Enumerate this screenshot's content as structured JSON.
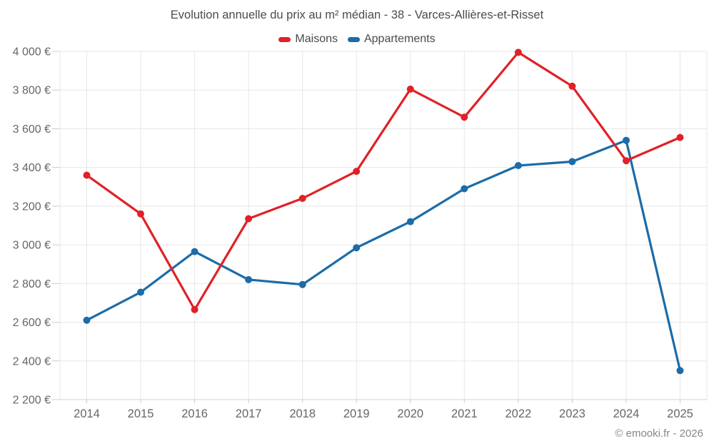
{
  "chart": {
    "credits": "© emooki.fr - 2026"
  },
  "colors": {
    "maisons": "#e02127",
    "appartements": "#1b6ca8",
    "grid": "#e7e7e7",
    "axis_line": "#ccd2d9",
    "tick": "#cccccc",
    "axis_label": "#666666",
    "title_text": "#4c4c4c",
    "legend_text": "#4a4a4a",
    "credits_text": "#868686",
    "background": "#ffffff"
  },
  "chart_data": {
    "type": "line",
    "title": "Evolution annuelle du prix au m² médian - 38 - Varces-Allières-et-Risset",
    "xlabel": "",
    "ylabel": "",
    "categories": [
      "2014",
      "2015",
      "2016",
      "2017",
      "2018",
      "2019",
      "2020",
      "2021",
      "2022",
      "2023",
      "2024",
      "2025"
    ],
    "series": [
      {
        "name": "Maisons",
        "color": "#e02127",
        "values": [
          3360,
          3160,
          2665,
          3135,
          3240,
          3380,
          3805,
          3660,
          3995,
          3820,
          3435,
          3555
        ]
      },
      {
        "name": "Appartements",
        "color": "#1b6ca8",
        "values": [
          2610,
          2755,
          2965,
          2820,
          2795,
          2985,
          3120,
          3290,
          3410,
          3430,
          3540,
          2350
        ]
      }
    ],
    "ylim": [
      2200,
      4000
    ],
    "ytick_step": 200,
    "ytick_suffix": " €",
    "grid": true,
    "legend_position": "top"
  }
}
